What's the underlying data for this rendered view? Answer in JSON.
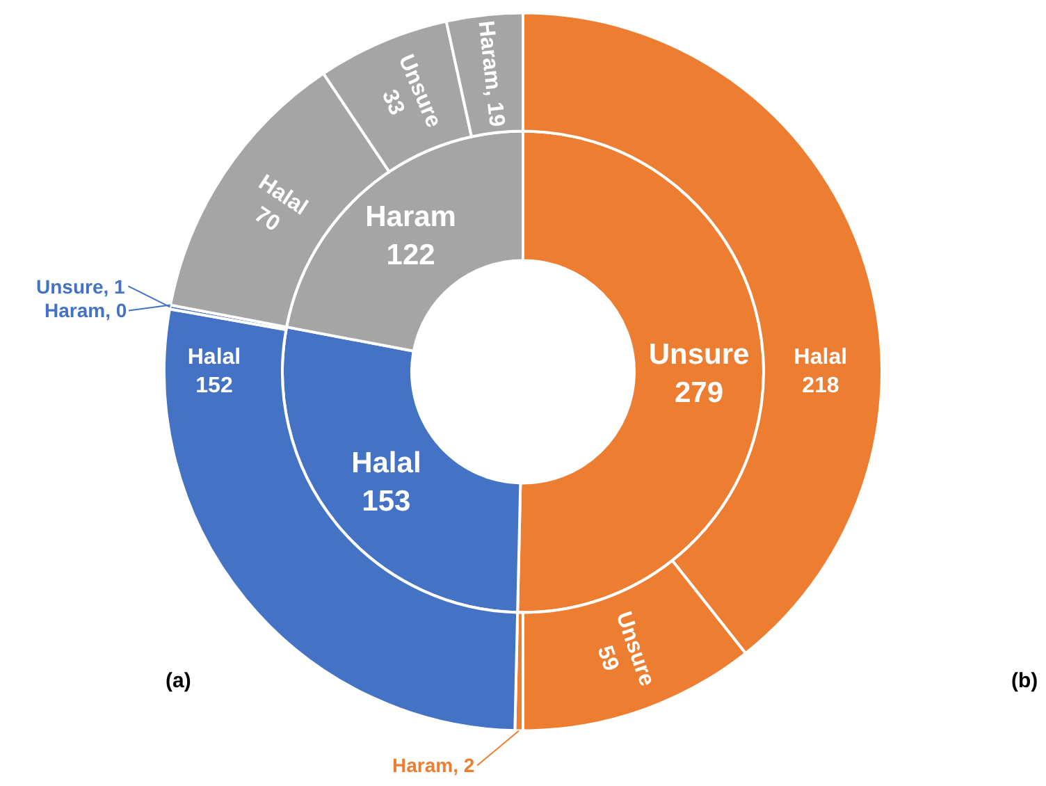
{
  "chart_data": {
    "type": "donut",
    "annotations": [
      "(a)",
      "(b)"
    ],
    "series": [
      {
        "values": [
          279,
          153,
          122
        ],
        "colors": [
          "#ed7d31",
          "#4472c4",
          "#a5a5a5"
        ],
        "value_labels": [
          "Unsure\n279",
          "Halal\n153",
          "Haram\n122"
        ]
      },
      {
        "values": [
          218,
          59,
          2,
          152,
          1,
          0,
          70,
          33,
          19
        ],
        "colors": [
          "#ed7d31",
          "#ed7d31",
          "#ed7d31",
          "#4472c4",
          "#4472c4",
          "#4472c4",
          "#a5a5a5",
          "#a5a5a5",
          "#a5a5a5"
        ],
        "value_labels": [
          "Halal\n218",
          "Unsure\n59",
          "Haram, 2",
          "Halal\n152",
          "Unsure, 1",
          "Haram, 0",
          "Halal\n70",
          "Unsure\n33",
          "Haram, 19"
        ]
      }
    ]
  }
}
